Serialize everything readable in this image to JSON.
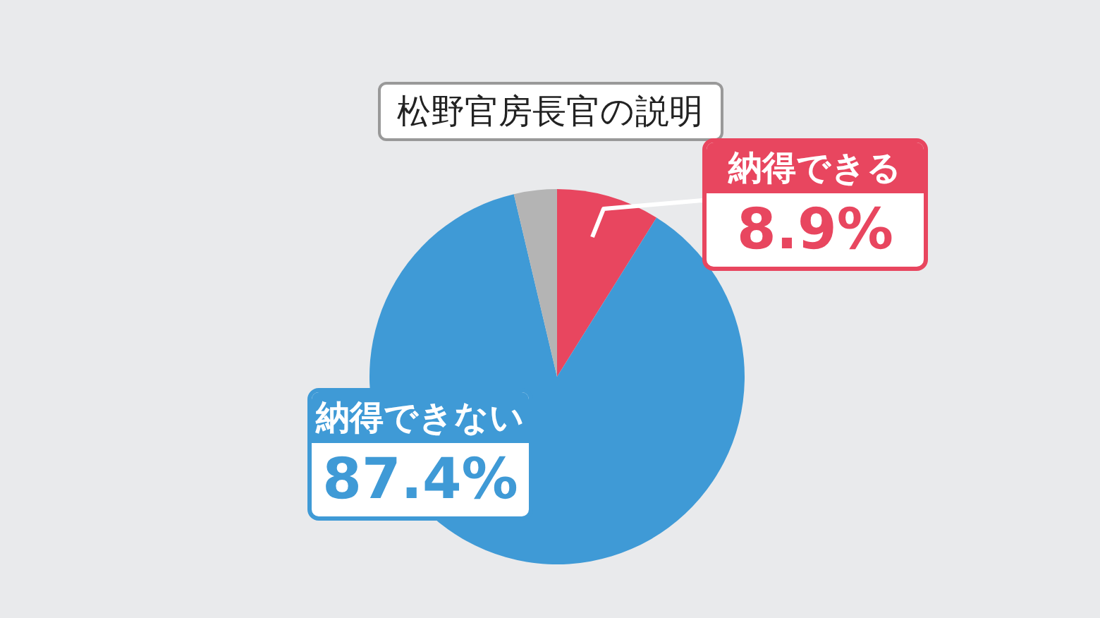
{
  "chart_data": {
    "type": "pie",
    "title": "松野官房長官の説明",
    "categories": [
      "納得できる",
      "納得できない",
      null
    ],
    "values": [
      8.9,
      87.4,
      3.7
    ],
    "colors": [
      "#e8465f",
      "#3f9ad6",
      "#b4b4b4"
    ],
    "value_labels": [
      "8.9%",
      "87.4%",
      null
    ],
    "legend": false
  }
}
